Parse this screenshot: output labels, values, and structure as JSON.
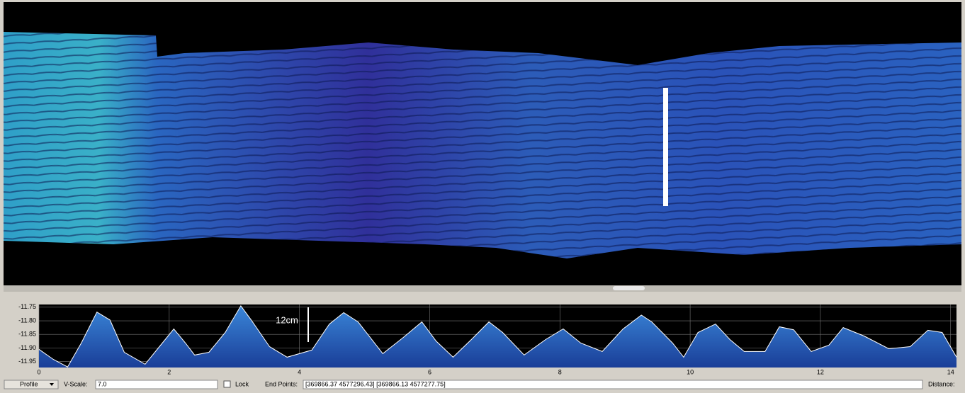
{
  "chart_data": {
    "type": "line",
    "annotation": "12cm",
    "x": [
      0,
      0.22,
      0.44,
      0.65,
      0.89,
      1.09,
      1.31,
      1.63,
      1.85,
      2.07,
      2.25,
      2.39,
      2.61,
      2.86,
      3.1,
      3.26,
      3.54,
      3.81,
      4.19,
      4.46,
      4.68,
      4.9,
      5.28,
      5.58,
      5.88,
      6.1,
      6.36,
      6.64,
      6.91,
      7.12,
      7.45,
      7.78,
      8.05,
      8.32,
      8.65,
      8.97,
      9.25,
      9.41,
      9.73,
      9.9,
      10.12,
      10.39,
      10.61,
      10.83,
      11.15,
      11.37,
      11.59,
      11.86,
      12.13,
      12.35,
      12.67,
      13.05,
      13.38,
      13.65,
      13.87,
      14.09
    ],
    "values": [
      -11.905,
      -11.942,
      -11.97,
      -11.882,
      -11.768,
      -11.797,
      -11.916,
      -11.96,
      -11.895,
      -11.83,
      -11.882,
      -11.926,
      -11.916,
      -11.843,
      -11.745,
      -11.797,
      -11.895,
      -11.934,
      -11.908,
      -11.812,
      -11.77,
      -11.804,
      -11.921,
      -11.864,
      -11.804,
      -11.875,
      -11.934,
      -11.869,
      -11.804,
      -11.843,
      -11.926,
      -11.869,
      -11.83,
      -11.882,
      -11.913,
      -11.83,
      -11.779,
      -11.804,
      -11.882,
      -11.934,
      -11.843,
      -11.812,
      -11.869,
      -11.913,
      -11.913,
      -11.822,
      -11.833,
      -11.913,
      -11.89,
      -11.825,
      -11.856,
      -11.903,
      -11.895,
      -11.835,
      -11.843,
      -11.934
    ],
    "color": "#ffffff",
    "xlim": [
      0,
      14.09
    ],
    "ylim": [
      -11.972,
      -11.74
    ],
    "xticks": [
      0,
      2,
      4,
      6,
      8,
      10,
      12,
      14
    ],
    "yticks": [
      -11.75,
      {
        "value": -11.8,
        "label": "-11.80"
      },
      -11.85,
      {
        "value": -11.9,
        "label": "-11.90"
      },
      -11.95
    ],
    "grid": true
  },
  "toolbar": {
    "profile_button": "Profile",
    "vscale_label": "V-Scale:",
    "vscale_value": "7.0",
    "lock_label": "Lock",
    "endpoints_label": "End Points:",
    "endpoints_value": "[369866.37 4577296.43] [369866.13 4577277.75]",
    "distance_label": "Distance:"
  }
}
